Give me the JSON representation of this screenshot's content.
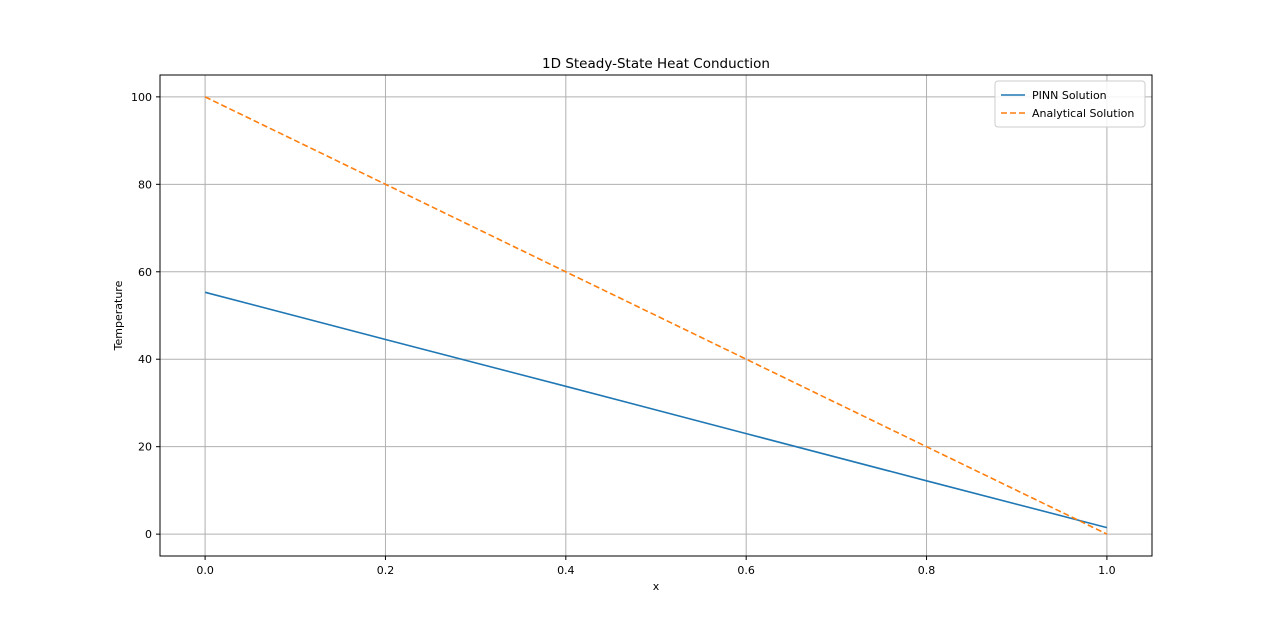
{
  "chart_data": {
    "type": "line",
    "title": "1D Steady-State Heat Conduction",
    "xlabel": "x",
    "ylabel": "Temperature",
    "xlim": [
      -0.05,
      1.05
    ],
    "ylim": [
      -5,
      105
    ],
    "xticks": [
      0.0,
      0.2,
      0.4,
      0.6,
      0.8,
      1.0
    ],
    "xtick_labels": [
      "0.0",
      "0.2",
      "0.4",
      "0.6",
      "0.8",
      "1.0"
    ],
    "yticks": [
      0,
      20,
      40,
      60,
      80,
      100
    ],
    "ytick_labels": [
      "0",
      "20",
      "40",
      "60",
      "80",
      "100"
    ],
    "grid": true,
    "legend_position": "top-right",
    "series": [
      {
        "name": "PINN Solution",
        "color": "#1f77b4",
        "style": "solid",
        "x": [
          0.0,
          0.2,
          0.4,
          0.6,
          0.8,
          1.0
        ],
        "y": [
          55.3,
          44.5,
          33.8,
          23.0,
          12.2,
          1.5
        ]
      },
      {
        "name": "Analytical Solution",
        "color": "#ff7f0e",
        "style": "dashed",
        "x": [
          0.0,
          0.2,
          0.4,
          0.6,
          0.8,
          1.0
        ],
        "y": [
          100,
          80,
          60,
          40,
          20,
          0
        ]
      }
    ]
  }
}
